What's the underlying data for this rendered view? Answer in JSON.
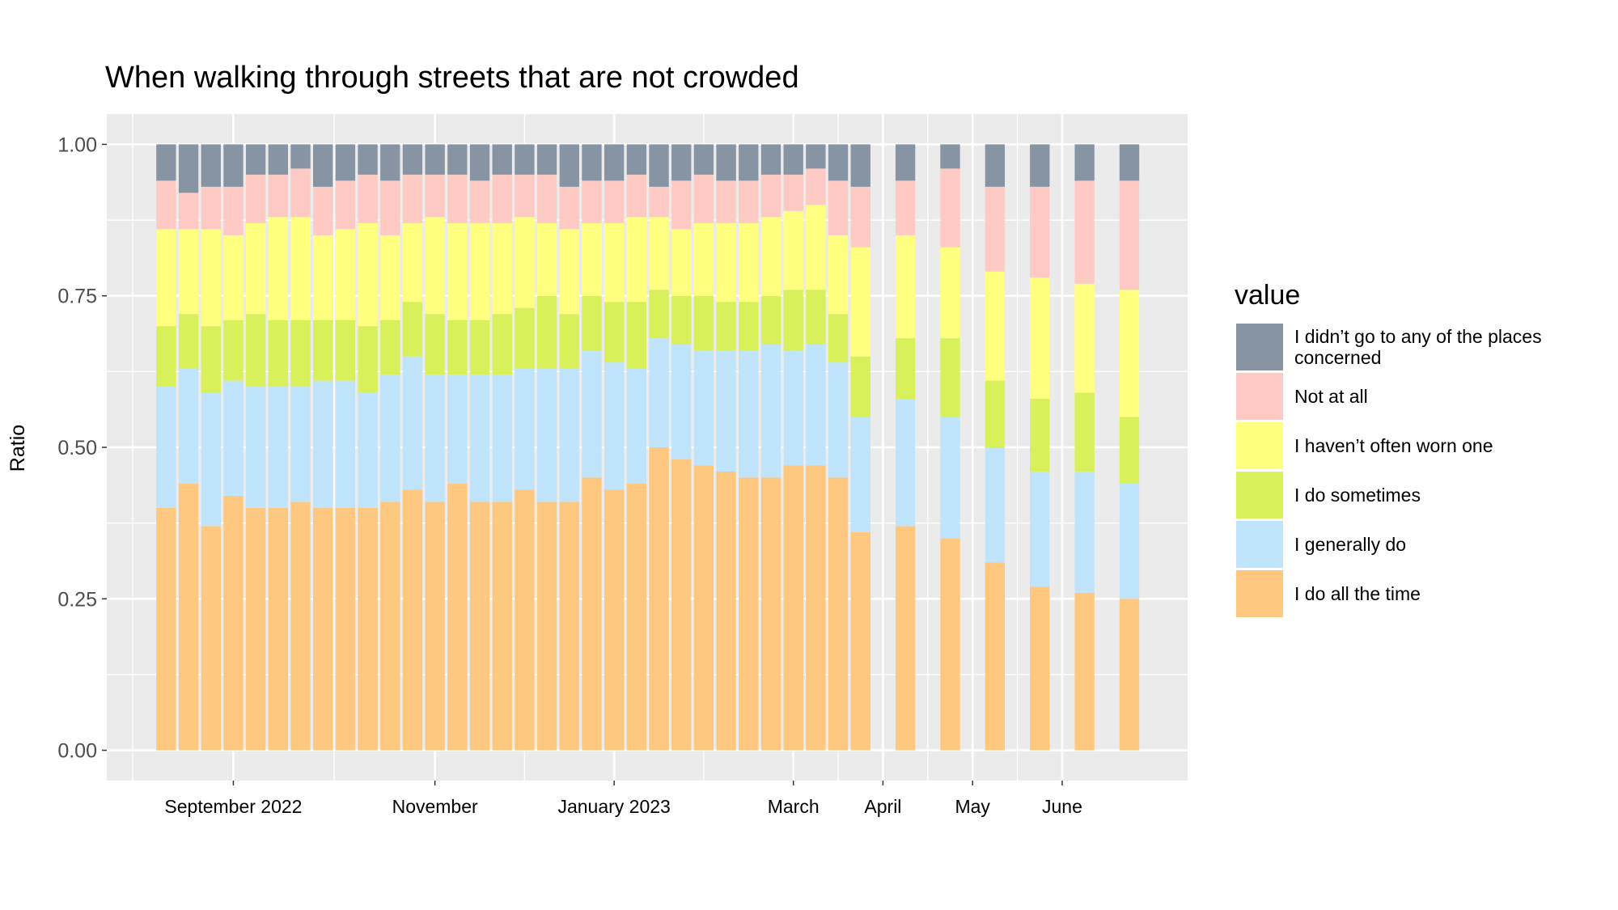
{
  "chart_data": {
    "type": "stacked_bar",
    "title": "When walking through streets that are not crowded",
    "y_label": "Ratio",
    "legend_title": "value",
    "legend_position": "right",
    "grid": true,
    "categories": [
      null,
      null,
      null,
      null,
      null,
      null,
      null,
      null,
      null,
      null,
      null,
      null,
      null,
      null,
      null,
      null,
      null,
      null,
      null,
      null,
      null,
      null,
      null,
      null,
      null,
      null,
      null,
      null,
      null,
      null,
      null,
      null,
      null,
      null,
      null,
      null,
      null,
      null,
      null,
      null,
      null,
      null,
      null,
      null
    ],
    "xlim": [
      -2.65,
      45.6
    ],
    "xticks": [
      {
        "value": 3,
        "label": "September 2022"
      },
      {
        "value": 12,
        "label": "November"
      },
      {
        "value": 20,
        "label": "January 2023"
      },
      {
        "value": 28,
        "label": "March"
      },
      {
        "value": 32,
        "label": "April"
      },
      {
        "value": 36,
        "label": "May"
      },
      {
        "value": 40,
        "label": "June"
      }
    ],
    "ylim": [
      -0.05,
      1.05
    ],
    "yticks": [
      {
        "value": 0,
        "label": "0.00"
      },
      {
        "value": 0.25,
        "label": "0.25"
      },
      {
        "value": 0.5,
        "label": "0.50"
      },
      {
        "value": 0.75,
        "label": "0.75"
      },
      {
        "value": 1,
        "label": "1.00"
      }
    ],
    "series": [
      {
        "name": "I didn’t go to any of the places concerned",
        "color": "#8694a3",
        "values": [
          0.06,
          0.08,
          0.07,
          0.07,
          0.05,
          0.05,
          0.04,
          0.07,
          0.06,
          0.05,
          0.06,
          0.05,
          0.05,
          0.05,
          0.06,
          0.05,
          0.05,
          0.05,
          0.07,
          0.06,
          0.06,
          0.05,
          0.07,
          0.06,
          0.05,
          0.06,
          0.06,
          0.05,
          0.05,
          0.04,
          0.06,
          0.07,
          null,
          0.06,
          null,
          0.04,
          null,
          0.07,
          null,
          0.07,
          null,
          0.06,
          null,
          0.06
        ]
      },
      {
        "name": "Not at all",
        "color": "#ffcac4",
        "values": [
          0.08,
          0.06,
          0.07,
          0.08,
          0.08,
          0.07,
          0.08,
          0.08,
          0.08,
          0.08,
          0.09,
          0.08,
          0.07,
          0.08,
          0.07,
          0.08,
          0.07,
          0.08,
          0.07,
          0.07,
          0.07,
          0.07,
          0.05,
          0.08,
          0.08,
          0.07,
          0.07,
          0.07,
          0.06,
          0.06,
          0.09,
          0.1,
          null,
          0.09,
          null,
          0.13,
          null,
          0.14,
          null,
          0.15,
          null,
          0.17,
          null,
          0.18
        ]
      },
      {
        "name": "I haven’t often worn one",
        "color": "#ffff80",
        "values": [
          0.16,
          0.14,
          0.16,
          0.14,
          0.15,
          0.17,
          0.17,
          0.14,
          0.15,
          0.17,
          0.14,
          0.13,
          0.16,
          0.16,
          0.16,
          0.15,
          0.15,
          0.12,
          0.14,
          0.12,
          0.13,
          0.14,
          0.12,
          0.11,
          0.12,
          0.13,
          0.13,
          0.13,
          0.13,
          0.14,
          0.13,
          0.18,
          null,
          0.17,
          null,
          0.15,
          null,
          0.18,
          null,
          0.2,
          null,
          0.18,
          null,
          0.21
        ]
      },
      {
        "name": "I do sometimes",
        "color": "#d8f05a",
        "values": [
          0.1,
          0.09,
          0.11,
          0.1,
          0.12,
          0.11,
          0.11,
          0.1,
          0.1,
          0.11,
          0.09,
          0.09,
          0.1,
          0.09,
          0.09,
          0.1,
          0.1,
          0.12,
          0.09,
          0.09,
          0.1,
          0.11,
          0.08,
          0.08,
          0.09,
          0.08,
          0.08,
          0.08,
          0.1,
          0.09,
          0.08,
          0.1,
          null,
          0.1,
          null,
          0.13,
          null,
          0.11,
          null,
          0.12,
          null,
          0.13,
          null,
          0.11
        ]
      },
      {
        "name": "I generally do",
        "color": "#c0e4fc",
        "values": [
          0.2,
          0.19,
          0.22,
          0.19,
          0.2,
          0.2,
          0.19,
          0.21,
          0.21,
          0.19,
          0.21,
          0.22,
          0.21,
          0.18,
          0.21,
          0.21,
          0.2,
          0.22,
          0.22,
          0.21,
          0.21,
          0.19,
          0.18,
          0.19,
          0.19,
          0.2,
          0.21,
          0.22,
          0.19,
          0.2,
          0.19,
          0.19,
          null,
          0.21,
          null,
          0.2,
          null,
          0.19,
          null,
          0.19,
          null,
          0.2,
          null,
          0.19
        ]
      },
      {
        "name": "I do all the time",
        "color": "#ffc880",
        "values": [
          0.4,
          0.44,
          0.37,
          0.42,
          0.4,
          0.4,
          0.41,
          0.4,
          0.4,
          0.4,
          0.41,
          0.43,
          0.41,
          0.44,
          0.41,
          0.41,
          0.43,
          0.41,
          0.41,
          0.45,
          0.43,
          0.44,
          0.5,
          0.48,
          0.47,
          0.46,
          0.45,
          0.45,
          0.47,
          0.47,
          0.45,
          0.36,
          null,
          0.37,
          null,
          0.35,
          null,
          0.31,
          null,
          0.27,
          null,
          0.26,
          null,
          0.25
        ]
      }
    ]
  }
}
